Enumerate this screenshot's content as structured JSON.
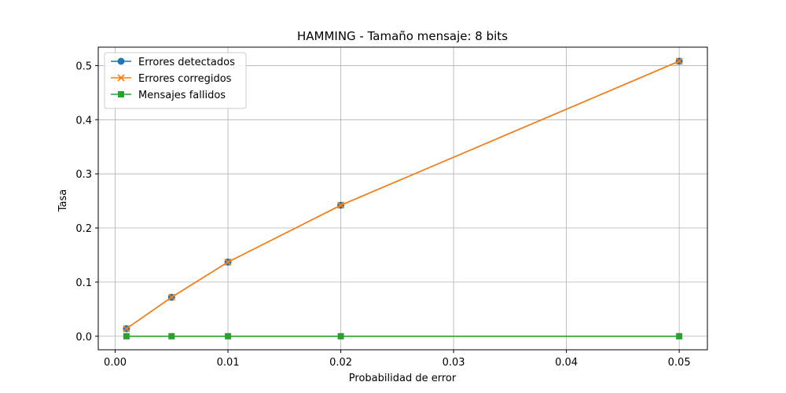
{
  "chart_data": {
    "type": "line",
    "title": "HAMMING - Tamaño mensaje: 8 bits",
    "xlabel": "Probabilidad de error",
    "ylabel": "Tasa",
    "x": [
      0.001,
      0.005,
      0.01,
      0.02,
      0.05
    ],
    "xlim": [
      -0.0015,
      0.0525
    ],
    "ylim": [
      -0.025,
      0.534
    ],
    "xticks": [
      "0.00",
      "0.01",
      "0.02",
      "0.03",
      "0.04",
      "0.05"
    ],
    "yticks": [
      "0.0",
      "0.1",
      "0.2",
      "0.3",
      "0.4",
      "0.5"
    ],
    "grid": true,
    "legend_position": "top-left",
    "series": [
      {
        "name": "Errores detectados",
        "values": [
          0.014,
          0.072,
          0.137,
          0.242,
          0.508
        ],
        "color": "#1f77b4",
        "marker": "circle"
      },
      {
        "name": "Errores corregidos",
        "values": [
          0.014,
          0.072,
          0.137,
          0.242,
          0.508
        ],
        "color": "#ff7f0e",
        "marker": "x"
      },
      {
        "name": "Mensajes fallidos",
        "values": [
          0.0,
          0.0,
          0.0,
          0.0,
          0.0
        ],
        "color": "#2ca02c",
        "marker": "square"
      }
    ]
  }
}
